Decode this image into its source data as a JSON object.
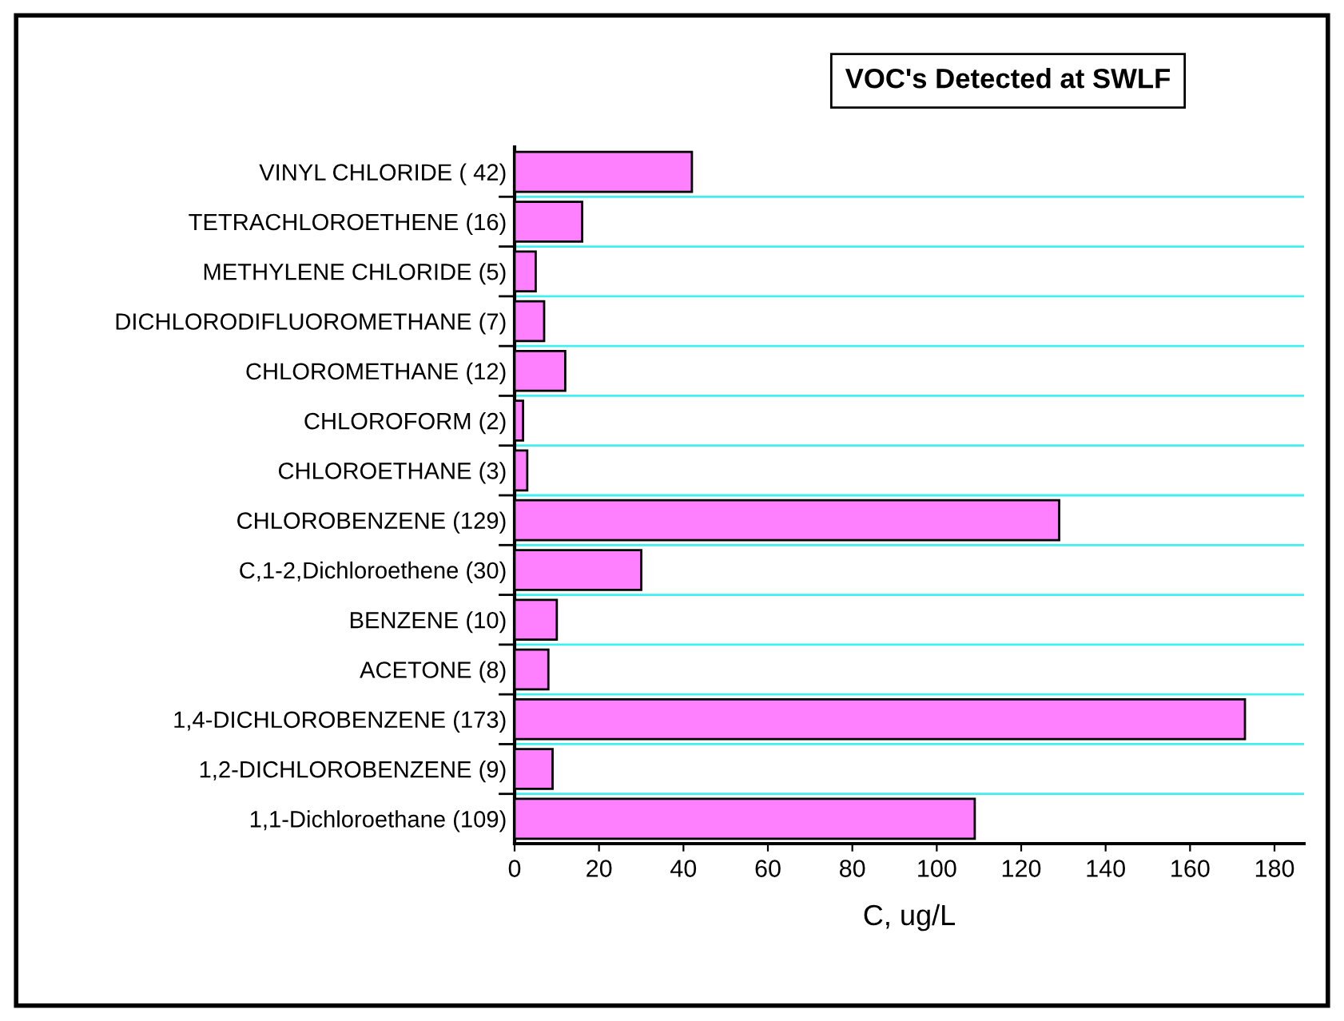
{
  "chart_data": {
    "type": "bar",
    "orientation": "horizontal",
    "title": "VOC's Detected at SWLF",
    "xlabel": "C, ug/L",
    "categories": [
      "VINYL CHLORIDE ( 42)",
      "TETRACHLOROETHENE (16)",
      "METHYLENE CHLORIDE (5)",
      "DICHLORODIFLUOROMETHANE (7)",
      "CHLOROMETHANE (12)",
      "CHLOROFORM (2)",
      "CHLOROETHANE (3)",
      "CHLOROBENZENE (129)",
      "C,1-2,Dichloroethene (30)",
      "BENZENE (10)",
      "ACETONE (8)",
      "1,4-DICHLOROBENZENE (173)",
      "1,2-DICHLOROBENZENE (9)",
      "1,1-Dichloroethane (109)"
    ],
    "values": [
      42,
      16,
      5,
      7,
      12,
      2,
      3,
      129,
      30,
      10,
      8,
      173,
      9,
      109
    ],
    "color": "#ff80ff",
    "xlim": [
      0,
      187
    ],
    "xticks": [
      0,
      20,
      40,
      60,
      80,
      100,
      120,
      140,
      160,
      180
    ],
    "grid": "y",
    "legend": false
  }
}
